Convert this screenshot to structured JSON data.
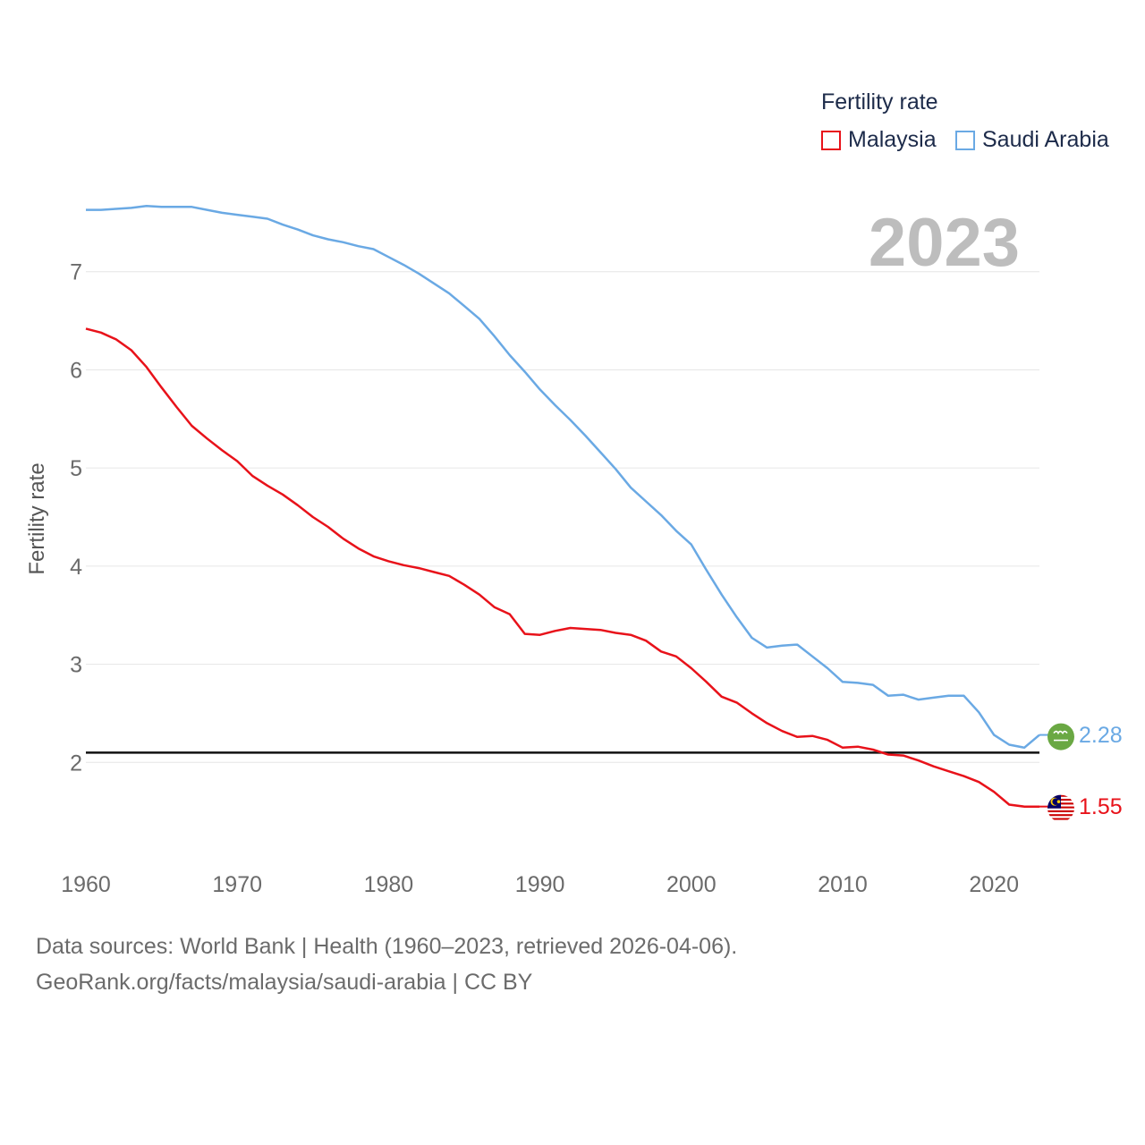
{
  "legend": {
    "title": "Fertility rate",
    "items": [
      {
        "label": "Malaysia",
        "color": "#e8121a"
      },
      {
        "label": "Saudi Arabia",
        "color": "#6aa9e4"
      }
    ]
  },
  "year_label": "2023",
  "footer": {
    "line1": "Data sources: World Bank | Health (1960–2023, retrieved 2026-04-06).",
    "line2": "GeoRank.org/facts/malaysia/saudi-arabia | CC BY"
  },
  "chart_data": {
    "type": "line",
    "title": "Fertility rate",
    "xlabel": "",
    "ylabel": "Fertility rate",
    "xlim": [
      1960,
      2023
    ],
    "ylim": [
      1.0,
      7.9
    ],
    "x_ticks": [
      1960,
      1970,
      1980,
      1990,
      2000,
      2010,
      2020
    ],
    "y_ticks": [
      2,
      3,
      4,
      5,
      6,
      7
    ],
    "reference_line": {
      "y": 2.1,
      "color": "#111111"
    },
    "x": [
      1960,
      1961,
      1962,
      1963,
      1964,
      1965,
      1966,
      1967,
      1968,
      1969,
      1970,
      1971,
      1972,
      1973,
      1974,
      1975,
      1976,
      1977,
      1978,
      1979,
      1980,
      1981,
      1982,
      1983,
      1984,
      1985,
      1986,
      1987,
      1988,
      1989,
      1990,
      1991,
      1992,
      1993,
      1994,
      1995,
      1996,
      1997,
      1998,
      1999,
      2000,
      2001,
      2002,
      2003,
      2004,
      2005,
      2006,
      2007,
      2008,
      2009,
      2010,
      2011,
      2012,
      2013,
      2014,
      2015,
      2016,
      2017,
      2018,
      2019,
      2020,
      2021,
      2022,
      2023
    ],
    "series": [
      {
        "name": "Malaysia",
        "color": "#e8121a",
        "end_label": "1.55",
        "values": [
          6.42,
          6.38,
          6.31,
          6.2,
          6.03,
          5.82,
          5.62,
          5.43,
          5.3,
          5.18,
          5.07,
          4.92,
          4.82,
          4.73,
          4.62,
          4.5,
          4.4,
          4.28,
          4.18,
          4.1,
          4.05,
          4.01,
          3.98,
          3.94,
          3.9,
          3.81,
          3.71,
          3.58,
          3.51,
          3.31,
          3.3,
          3.34,
          3.37,
          3.36,
          3.35,
          3.32,
          3.3,
          3.24,
          3.13,
          3.08,
          2.96,
          2.82,
          2.67,
          2.61,
          2.5,
          2.4,
          2.32,
          2.26,
          2.27,
          2.23,
          2.15,
          2.16,
          2.13,
          2.08,
          2.07,
          2.02,
          1.96,
          1.91,
          1.86,
          1.8,
          1.7,
          1.57,
          1.55,
          1.55
        ]
      },
      {
        "name": "Saudi Arabia",
        "color": "#6aa9e4",
        "end_label": "2.28",
        "values": [
          7.63,
          7.63,
          7.64,
          7.65,
          7.67,
          7.66,
          7.66,
          7.66,
          7.63,
          7.6,
          7.58,
          7.56,
          7.54,
          7.48,
          7.43,
          7.37,
          7.33,
          7.3,
          7.26,
          7.23,
          7.15,
          7.07,
          6.98,
          6.88,
          6.78,
          6.65,
          6.52,
          6.34,
          6.15,
          5.98,
          5.8,
          5.64,
          5.49,
          5.33,
          5.16,
          4.99,
          4.8,
          4.66,
          4.52,
          4.36,
          4.22,
          3.96,
          3.71,
          3.48,
          3.27,
          3.17,
          3.19,
          3.2,
          3.08,
          2.96,
          2.82,
          2.81,
          2.79,
          2.68,
          2.69,
          2.64,
          2.66,
          2.68,
          2.68,
          2.51,
          2.28,
          2.18,
          2.15,
          2.28
        ]
      }
    ]
  }
}
